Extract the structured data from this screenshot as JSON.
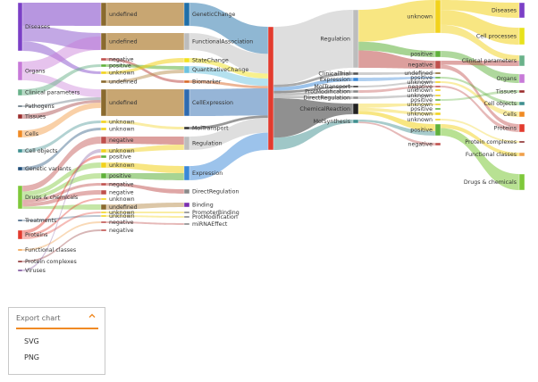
{
  "diagram": {
    "type": "sankey",
    "columns": [
      {
        "id": "c1",
        "nodes": [
          {
            "label": "Diseases",
            "color": "#7b3fc6"
          },
          {
            "label": "Organs",
            "color": "#c77ad8"
          },
          {
            "label": "Clinical parameters",
            "color": "#6ab28a"
          },
          {
            "label": "Pathogens",
            "color": "#5d6f7a"
          },
          {
            "label": "Tissues",
            "color": "#9b2c2c"
          },
          {
            "label": "Cells",
            "color": "#f08a24"
          },
          {
            "label": "Cell objects",
            "color": "#3f8f8f"
          },
          {
            "label": "Genetic variants",
            "color": "#1f4e79"
          },
          {
            "label": "Drugs & chemicals",
            "color": "#7ec83a"
          },
          {
            "label": "Treatments",
            "color": "#3f5f7f"
          },
          {
            "label": "Proteins",
            "color": "#e23b2e"
          },
          {
            "label": "Functional classes",
            "color": "#f0a04a"
          },
          {
            "label": "Protein complexes",
            "color": "#8b2c2c"
          },
          {
            "label": "Viruses",
            "color": "#7a4f9a"
          }
        ]
      },
      {
        "id": "c2",
        "nodes": [
          {
            "label": "undefined",
            "color": "#8a6a2e"
          },
          {
            "label": "undefined",
            "color": "#8a6a2e"
          },
          {
            "label": "negative",
            "color": "#c0504d"
          },
          {
            "label": "positive",
            "color": "#5fb13b"
          },
          {
            "label": "unknown",
            "color": "#f2d21c"
          },
          {
            "label": "undefined",
            "color": "#8a6a2e"
          },
          {
            "label": "undefined",
            "color": "#8a6a2e"
          },
          {
            "label": "unknown",
            "color": "#f2d21c"
          },
          {
            "label": "unknown",
            "color": "#f2d21c"
          },
          {
            "label": "negative",
            "color": "#c0504d"
          },
          {
            "label": "unknown",
            "color": "#f2d21c"
          },
          {
            "label": "positive",
            "color": "#5fb13b"
          },
          {
            "label": "unknown",
            "color": "#f2d21c"
          },
          {
            "label": "positive",
            "color": "#5fb13b"
          },
          {
            "label": "negative",
            "color": "#c0504d"
          },
          {
            "label": "negative",
            "color": "#c0504d"
          },
          {
            "label": "unknown",
            "color": "#f2d21c"
          },
          {
            "label": "undefined",
            "color": "#8a6a2e"
          },
          {
            "label": "unknown",
            "color": "#f2d21c"
          },
          {
            "label": "unknown",
            "color": "#f2d21c"
          },
          {
            "label": "negative",
            "color": "#c0504d"
          },
          {
            "label": "negative",
            "color": "#c0504d"
          }
        ]
      },
      {
        "id": "c3",
        "nodes": [
          {
            "label": "GeneticChange",
            "color": "#1f6fa8"
          },
          {
            "label": "FunctionalAssociation",
            "color": "#bdbdbd"
          },
          {
            "label": "StateChange",
            "color": "#f2e21c"
          },
          {
            "label": "QuantitativeChange",
            "color": "#6cc3e0"
          },
          {
            "label": "Biomarker",
            "color": "#d96a2a"
          },
          {
            "label": "CellExpression",
            "color": "#2e6bb0"
          },
          {
            "label": "MolTransport",
            "color": "#333333"
          },
          {
            "label": "Regulation",
            "color": "#bdbdbd"
          },
          {
            "label": "Expression",
            "color": "#3a88d8"
          },
          {
            "label": "DirectRegulation",
            "color": "#8a8a8a"
          },
          {
            "label": "Binding",
            "color": "#7a2fb0"
          },
          {
            "label": "PromoterBinding",
            "color": "#888888"
          },
          {
            "label": "ProtModification",
            "color": "#888888"
          },
          {
            "label": "miRNAEffect",
            "color": "#888888"
          }
        ]
      },
      {
        "id": "c4",
        "nodes": [
          {
            "label": "",
            "color": "#e23b2e"
          }
        ]
      },
      {
        "id": "c5",
        "nodes": [
          {
            "label": "Regulation",
            "color": "#bdbdbd"
          },
          {
            "label": "ClinicalTrial",
            "color": "#555555"
          },
          {
            "label": "Expression",
            "color": "#3a88d8"
          },
          {
            "label": "MolTransport",
            "color": "#333333"
          },
          {
            "label": "ProtModification",
            "color": "#888888"
          },
          {
            "label": "DirectRegulation",
            "color": "#8a8a8a"
          },
          {
            "label": "ChemicalReaction",
            "color": "#222222"
          },
          {
            "label": "MolSynthesis",
            "color": "#3f8f8f"
          }
        ]
      },
      {
        "id": "c6",
        "nodes": [
          {
            "label": "unknown",
            "color": "#f2d21c"
          },
          {
            "label": "positive",
            "color": "#5fb13b"
          },
          {
            "label": "negative",
            "color": "#c0504d"
          },
          {
            "label": "undefined",
            "color": "#8a6a2e"
          },
          {
            "label": "positive",
            "color": "#5fb13b"
          },
          {
            "label": "unknown",
            "color": "#f2d21c"
          },
          {
            "label": "negative",
            "color": "#c0504d"
          },
          {
            "label": "unknown",
            "color": "#f2d21c"
          },
          {
            "label": "unknown",
            "color": "#f2d21c"
          },
          {
            "label": "positive",
            "color": "#5fb13b"
          },
          {
            "label": "unknown",
            "color": "#f2d21c"
          },
          {
            "label": "positive",
            "color": "#5fb13b"
          },
          {
            "label": "unknown",
            "color": "#f2d21c"
          },
          {
            "label": "unknown",
            "color": "#f2d21c"
          },
          {
            "label": "positive",
            "color": "#5fb13b"
          },
          {
            "label": "negative",
            "color": "#c0504d"
          }
        ]
      },
      {
        "id": "c7",
        "nodes": [
          {
            "label": "Diseases",
            "color": "#7b3fc6"
          },
          {
            "label": "Cell processes",
            "color": "#e8e21c"
          },
          {
            "label": "Clinical parameters",
            "color": "#6ab28a"
          },
          {
            "label": "Organs",
            "color": "#c77ad8"
          },
          {
            "label": "Tissues",
            "color": "#9b2c2c"
          },
          {
            "label": "Cell objects",
            "color": "#3f8f8f"
          },
          {
            "label": "Cells",
            "color": "#f08a24"
          },
          {
            "label": "Proteins",
            "color": "#e23b2e"
          },
          {
            "label": "Protein complexes",
            "color": "#8b2c2c"
          },
          {
            "label": "Functional classes",
            "color": "#f0a04a"
          },
          {
            "label": "Drugs & chemicals",
            "color": "#7ec83a"
          }
        ]
      }
    ]
  },
  "export": {
    "title": "Export chart",
    "options": [
      "SVG",
      "PNG"
    ],
    "accent": "#f08a24"
  }
}
